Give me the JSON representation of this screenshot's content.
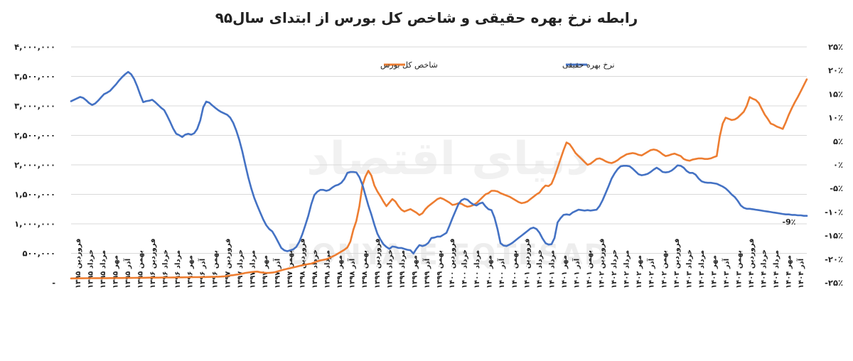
{
  "chart_data": {
    "type": "line",
    "title": "رابطه نرخ بهره حقیقی و شاخص کل بورس از ابتدای سال۹۵",
    "watermark_text": "DONYA-E EQTESAD",
    "watermark_logo": "دنیای اقتصاد",
    "annotation": "-9٪",
    "legend_placement": "top-center",
    "grid": true,
    "colors": {
      "index": "#ED7D31",
      "rate": "#4472C4"
    },
    "y_left": {
      "ylim": [
        0,
        4000000
      ],
      "ticks": [
        0,
        500000,
        1000000,
        1500000,
        2000000,
        2500000,
        3000000,
        3500000,
        4000000
      ],
      "tick_labels": [
        "-",
        "۵۰۰,۰۰۰",
        "۱,۰۰۰,۰۰۰",
        "۱,۵۰۰,۰۰۰",
        "۲,۰۰۰,۰۰۰",
        "۲,۵۰۰,۰۰۰",
        "۳,۰۰۰,۰۰۰",
        "۳,۵۰۰,۰۰۰",
        "۴,۰۰۰,۰۰۰"
      ]
    },
    "y_right": {
      "ylim": [
        -25,
        25
      ],
      "ticks": [
        -25,
        -20,
        -15,
        -10,
        -5,
        0,
        5,
        10,
        15,
        20,
        25
      ],
      "tick_labels": [
        "-۲۵٪",
        "-۲۰٪",
        "-۱۵٪",
        "-۱۰٪",
        "-۵٪",
        "۰٪",
        "۵٪",
        "۱۰٪",
        "۱۵٪",
        "۲۰٪",
        "۲۵٪"
      ]
    },
    "x_labels": [
      "فروردین ۱۳۹۵",
      "خرداد ۱۳۹۵",
      "مرداد ۱۳۹۵",
      "مهر ۱۳۹۵",
      "آذر ۱۳۹۵",
      "بهمن ۱۳۹۵",
      "فروردین ۱۳۹۶",
      "خرداد ۱۳۹۶",
      "مرداد ۱۳۹۶",
      "مهر ۱۳۹۶",
      "آذر ۱۳۹۶",
      "بهمن ۱۳۹۶",
      "فروردین ۱۳۹۷",
      "خرداد ۱۳۹۷",
      "مرداد ۱۳۹۷",
      "مهر ۱۳۹۷",
      "آذر ۱۳۹۷",
      "بهمن ۱۳۹۷",
      "فروردین ۱۳۹۸",
      "خرداد ۱۳۹۸",
      "مرداد ۱۳۹۸",
      "مهر ۱۳۹۸",
      "آذر ۱۳۹۸",
      "بهمن ۱۳۹۸",
      "فروردین ۱۳۹۹",
      "خرداد ۱۳۹۹",
      "مرداد ۱۳۹۹",
      "مهر ۱۳۹۹",
      "آذر ۱۳۹۹",
      "بهمن ۱۳۹۹",
      "فروردین ۱۴۰۰",
      "خرداد ۱۴۰۰",
      "مرداد ۱۴۰۰",
      "مهر ۱۴۰۰",
      "آذر ۱۴۰۰",
      "بهمن ۱۴۰۰",
      "فروردین ۱۴۰۱",
      "خرداد ۱۴۰۱",
      "مرداد ۱۴۰۱",
      "مهر ۱۴۰۱",
      "آذر ۱۴۰۱",
      "بهمن ۱۴۰۱",
      "فروردین ۱۴۰۲",
      "خرداد ۱۴۰۲",
      "مرداد ۱۴۰۲",
      "مهر ۱۴۰۲",
      "آذر ۱۴۰۲",
      "بهمن ۱۴۰۲",
      "فروردین ۱۴۰۳",
      "خرداد ۱۴۰۳",
      "مرداد ۱۴۰۳",
      "مهر ۱۴۰۳",
      "آذر ۱۴۰۳",
      "بهمن ۱۴۰۳",
      "فروردین ۱۴۰۴",
      "خرداد ۱۴۰۴",
      "مرداد ۱۴۰۴",
      "مهر ۱۴۰۴",
      "آذر ۱۴۰۴"
    ],
    "series": [
      {
        "name": "شاخص کل بورس",
        "axis": "left",
        "values": [
          75000,
          76000,
          76500,
          77000,
          77500,
          78000,
          78000,
          78500,
          79000,
          79000,
          79500,
          80000,
          80000,
          80500,
          81000,
          81500,
          82000,
          82500,
          83000,
          83000,
          83500,
          84000,
          85000,
          86000,
          86000,
          87000,
          87500,
          88000,
          88000,
          88500,
          89000,
          89500,
          90000,
          90000,
          91000,
          92000,
          92500,
          93000,
          93500,
          94000,
          95000,
          96000,
          96000,
          97000,
          98000,
          99000,
          100000,
          101000,
          102000,
          104000,
          106000,
          110000,
          116000,
          125000,
          130000,
          138000,
          146000,
          155000,
          168000,
          175000,
          182000,
          188000,
          190000,
          178000,
          172000,
          168000,
          170000,
          174000,
          182000,
          198000,
          212000,
          225000,
          238000,
          250000,
          262000,
          272000,
          285000,
          298000,
          308000,
          318000,
          325000,
          345000,
          365000,
          380000,
          390000,
          400000,
          420000,
          445000,
          470000,
          500000,
          530000,
          560000,
          600000,
          700000,
          900000,
          1050000,
          1300000,
          1650000,
          1800000,
          1900000,
          1820000,
          1650000,
          1550000,
          1470000,
          1380000,
          1300000,
          1360000,
          1420000,
          1380000,
          1300000,
          1240000,
          1210000,
          1230000,
          1250000,
          1220000,
          1190000,
          1150000,
          1180000,
          1250000,
          1300000,
          1340000,
          1380000,
          1420000,
          1440000,
          1420000,
          1390000,
          1360000,
          1320000,
          1330000,
          1350000,
          1340000,
          1310000,
          1290000,
          1300000,
          1320000,
          1350000,
          1400000,
          1450000,
          1500000,
          1520000,
          1560000,
          1560000,
          1550000,
          1520000,
          1500000,
          1480000,
          1460000,
          1430000,
          1400000,
          1370000,
          1350000,
          1360000,
          1380000,
          1420000,
          1460000,
          1500000,
          1530000,
          1600000,
          1650000,
          1640000,
          1680000,
          1800000,
          1950000,
          2100000,
          2250000,
          2380000,
          2350000,
          2280000,
          2200000,
          2150000,
          2100000,
          2050000,
          2000000,
          2020000,
          2060000,
          2100000,
          2110000,
          2090000,
          2060000,
          2040000,
          2030000,
          2050000,
          2080000,
          2120000,
          2150000,
          2180000,
          2190000,
          2200000,
          2190000,
          2170000,
          2160000,
          2190000,
          2220000,
          2250000,
          2260000,
          2250000,
          2220000,
          2180000,
          2150000,
          2160000,
          2180000,
          2190000,
          2170000,
          2150000,
          2100000,
          2080000,
          2070000,
          2090000,
          2100000,
          2110000,
          2110000,
          2100000,
          2100000,
          2110000,
          2130000,
          2150000,
          2480000,
          2700000,
          2800000,
          2780000,
          2760000,
          2770000,
          2800000,
          2850000,
          2900000,
          3000000,
          3150000,
          3120000,
          3100000,
          3050000,
          2950000,
          2850000,
          2780000,
          2700000,
          2680000,
          2650000,
          2630000,
          2610000,
          2720000,
          2850000,
          2960000,
          3060000,
          3150000,
          3250000,
          3350000,
          3450000
        ]
      },
      {
        "name": "نرخ بهره حقیقی",
        "axis": "right",
        "values": [
          13.5,
          13.8,
          14.1,
          14.4,
          14.2,
          13.7,
          13.1,
          12.7,
          13.0,
          13.6,
          14.3,
          15.0,
          15.3,
          15.7,
          16.4,
          17.1,
          17.9,
          18.6,
          19.2,
          19.7,
          19.2,
          18.2,
          16.7,
          14.9,
          13.3,
          13.5,
          13.6,
          13.8,
          13.3,
          12.7,
          12.1,
          11.6,
          10.4,
          9.1,
          7.7,
          6.6,
          6.3,
          5.9,
          6.4,
          6.6,
          6.4,
          6.7,
          7.6,
          9.4,
          12.2,
          13.4,
          13.2,
          12.6,
          12.1,
          11.6,
          11.2,
          10.9,
          10.6,
          10.0,
          8.9,
          7.3,
          5.3,
          2.9,
          0.1,
          -2.6,
          -5.0,
          -7.0,
          -8.6,
          -10.1,
          -11.6,
          -12.8,
          -13.6,
          -14.1,
          -15.2,
          -16.4,
          -17.6,
          -18.1,
          -18.3,
          -18.1,
          -17.9,
          -17.4,
          -16.3,
          -14.7,
          -12.8,
          -10.8,
          -8.3,
          -6.4,
          -5.7,
          -5.3,
          -5.3,
          -5.5,
          -5.3,
          -4.8,
          -4.4,
          -4.2,
          -3.8,
          -3.0,
          -1.7,
          -1.5,
          -1.5,
          -1.6,
          -2.6,
          -4.2,
          -6.4,
          -8.6,
          -10.5,
          -12.7,
          -14.6,
          -15.8,
          -16.8,
          -17.4,
          -17.8,
          -17.3,
          -17.4,
          -17.6,
          -17.6,
          -17.8,
          -18.0,
          -18.1,
          -18.8,
          -17.8,
          -17.0,
          -17.2,
          -17.0,
          -16.5,
          -15.5,
          -15.4,
          -15.2,
          -15.2,
          -14.8,
          -14.4,
          -12.9,
          -11.3,
          -9.8,
          -8.3,
          -7.5,
          -7.2,
          -7.4,
          -8.0,
          -8.4,
          -8.6,
          -8.2,
          -8.0,
          -8.8,
          -9.4,
          -9.6,
          -11.2,
          -13.6,
          -16.6,
          -17.1,
          -17.2,
          -16.9,
          -16.5,
          -16.0,
          -15.5,
          -15.0,
          -14.5,
          -14.0,
          -13.5,
          -13.3,
          -13.6,
          -14.4,
          -15.6,
          -16.6,
          -16.9,
          -16.8,
          -15.5,
          -12.2,
          -11.3,
          -10.6,
          -10.5,
          -10.6,
          -10.1,
          -9.8,
          -9.5,
          -9.6,
          -9.7,
          -9.6,
          -9.7,
          -9.6,
          -9.5,
          -8.7,
          -7.5,
          -6.0,
          -4.5,
          -2.9,
          -1.8,
          -0.9,
          -0.3,
          -0.2,
          -0.2,
          -0.3,
          -0.8,
          -1.4,
          -2.0,
          -2.2,
          -2.1,
          -1.9,
          -1.5,
          -1.0,
          -0.6,
          -1.0,
          -1.5,
          -1.6,
          -1.5,
          -1.2,
          -0.7,
          -0.1,
          -0.2,
          -0.6,
          -1.3,
          -1.7,
          -1.7,
          -2.1,
          -2.9,
          -3.5,
          -3.7,
          -3.8,
          -3.8,
          -3.9,
          -4.0,
          -4.3,
          -4.6,
          -5.0,
          -5.6,
          -6.3,
          -6.8,
          -7.6,
          -8.6,
          -9.1,
          -9.3,
          -9.3,
          -9.4,
          -9.5,
          -9.6,
          -9.7,
          -9.8,
          -9.9,
          -10.0,
          -10.1,
          -10.2,
          -10.3,
          -10.4,
          -10.5,
          -10.5,
          -10.6,
          -10.6,
          -10.7,
          -10.7,
          -10.8,
          -10.8
        ]
      }
    ]
  }
}
